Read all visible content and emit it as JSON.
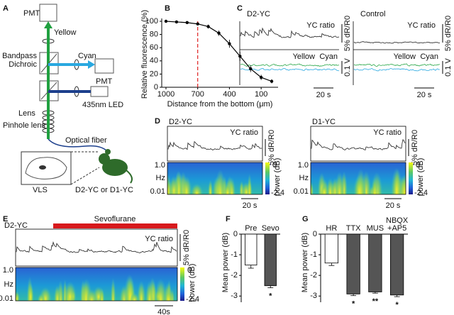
{
  "panel_labels": [
    "A",
    "B",
    "C",
    "D",
    "E",
    "F",
    "G"
  ],
  "diagram": {
    "pmt_top": "PMT",
    "yellow": "Yellow",
    "cyan": "Cyan",
    "bandpass": "Bandpass",
    "dichroic": "Dichroic",
    "pmt_side": "PMT",
    "led": "435nm LED",
    "lens": "Lens",
    "pinhole_lens": "Pinhole lens",
    "optical_fiber": "Optical fiber",
    "region": "VLS",
    "mouse": "D2-YC or D1-YC"
  },
  "panel_c": [
    {
      "title": "D2-YC",
      "trace_label": "YC ratio",
      "ratio_scale": "5% dR/R0",
      "yellow": "Yellow",
      "cyan": "Cyan",
      "voltage_scale": "0.1 V",
      "time_scale": "20 s"
    },
    {
      "title": "Control",
      "trace_label": "YC ratio",
      "ratio_scale": "5% dR/R0",
      "yellow": "Yellow",
      "cyan": "Cyan",
      "voltage_scale": "0.1 V",
      "time_scale": "20 s"
    }
  ],
  "panel_d": [
    {
      "title": "D2-YC",
      "trace_label": "YC ratio",
      "ratio_scale": "5% dR/R0",
      "freq_ticks": [
        "1.0",
        "0.01"
      ],
      "freq_label": "Hz",
      "colorbar_ticks": [
        "0",
        "-2.4"
      ],
      "colorbar_label": "power (dB)",
      "time_scale": "20 s"
    },
    {
      "title": "D1-YC",
      "trace_label": "YC ratio",
      "ratio_scale": "5% dR/R0",
      "freq_ticks": [
        "1.0",
        "0.01"
      ],
      "freq_label": "Hz",
      "colorbar_ticks": [
        "0",
        "-2.4"
      ],
      "colorbar_label": "power (dB)",
      "time_scale": "20 s"
    }
  ],
  "panel_e": {
    "title": "D2-YC",
    "treatment": "Sevoflurane",
    "trace_label": "YC ratio",
    "ratio_scale": "5% dR/R0",
    "freq_ticks": [
      "1.0",
      "0.01"
    ],
    "freq_label": "Hz",
    "colorbar_ticks": [
      "0",
      "-2.4"
    ],
    "colorbar_label": "power (dB)",
    "time_scale": "40s"
  },
  "chart_data": [
    {
      "type": "line",
      "xlabel": "Distance from the bottom (μm)",
      "ylabel": "Relative fluorescence (%)",
      "x": [
        1000,
        900,
        800,
        700,
        600,
        500,
        400,
        300,
        200,
        100,
        0
      ],
      "values": [
        100,
        99,
        98,
        96,
        92,
        82,
        66,
        47,
        28,
        15,
        9
      ],
      "errors": [
        1,
        1,
        1.5,
        2,
        3,
        4,
        6,
        7,
        5,
        4,
        3
      ],
      "xlim": [
        1040,
        -60
      ],
      "ylim": [
        0,
        100
      ],
      "xticks": [
        1000,
        700,
        400,
        100
      ],
      "yticks": [
        0,
        20,
        40,
        60,
        80,
        100
      ],
      "color": "#000000",
      "vline": 700,
      "vline_color": "#e02020"
    },
    {
      "type": "bar",
      "ylabel": "Mean power (dB)",
      "categories": [
        "Pre",
        "Sevo"
      ],
      "values": [
        -1.5,
        -2.5
      ],
      "errors": [
        0.15,
        0.1
      ],
      "colors": [
        "#ffffff",
        "#555555"
      ],
      "annotations": [
        null,
        "*"
      ],
      "ylim": [
        -3.3,
        0
      ],
      "yticks": [
        0,
        -1,
        -2,
        -3
      ]
    },
    {
      "type": "bar",
      "ylabel": "Mean power (dB)",
      "categories": [
        "HR",
        "TTX",
        "MUS",
        "NBQX +AP5"
      ],
      "values": [
        -1.4,
        -2.9,
        -2.8,
        -2.95
      ],
      "errors": [
        0.12,
        0.08,
        0.06,
        0.08
      ],
      "colors": [
        "#ffffff",
        "#555555",
        "#555555",
        "#555555"
      ],
      "annotations": [
        null,
        "*",
        "**",
        "*"
      ],
      "ylim": [
        -3.3,
        0
      ],
      "yticks": [
        0,
        -1,
        -2,
        -3
      ]
    }
  ]
}
